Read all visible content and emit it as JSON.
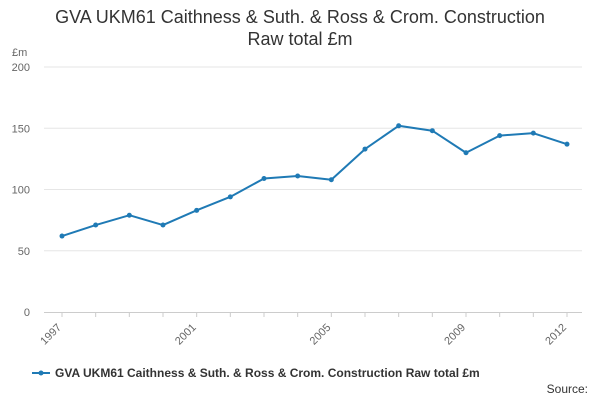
{
  "chart_data": {
    "type": "line",
    "title_line1": "GVA UKM61 Caithness & Suth. & Ross & Crom. Construction",
    "title_line2": "Raw total £m",
    "unit": "£m",
    "x": [
      1997,
      1998,
      1999,
      2000,
      2001,
      2002,
      2003,
      2004,
      2005,
      2006,
      2007,
      2008,
      2009,
      2010,
      2011,
      2012
    ],
    "x_tick_labels": [
      "1997",
      "2001",
      "2005",
      "2009",
      "2012"
    ],
    "y_ticks": [
      0,
      50,
      100,
      150,
      200
    ],
    "ylim": [
      0,
      200
    ],
    "series": [
      {
        "name": "GVA UKM61 Caithness & Suth. & Ross & Crom. Construction Raw total £m",
        "color": "#1f7ab5",
        "values": [
          62,
          71,
          79,
          71,
          83,
          94,
          109,
          111,
          108,
          133,
          152,
          148,
          130,
          144,
          146,
          137
        ]
      }
    ]
  },
  "footer": {
    "source_label": "Source:"
  }
}
